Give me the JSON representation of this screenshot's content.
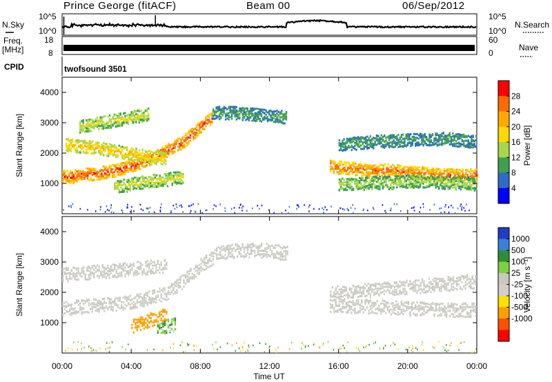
{
  "header": {
    "station": "Prince George (fitACF)",
    "beam": "Beam 00",
    "date": "06/Sep/2012"
  },
  "panels": {
    "nsky": {
      "left_label": "N.Sky",
      "left_ticks": [
        "10^5",
        "10^0"
      ],
      "right_ticks": [
        "10^5",
        "10^0"
      ],
      "right_label": "N.Search"
    },
    "freq": {
      "left_label_1": "Freq.",
      "left_label_2": "[MHz]",
      "left_ticks": [
        "18",
        "8"
      ],
      "right_ticks": [
        "60",
        "0"
      ],
      "right_label": "Nave"
    },
    "cpid": {
      "left_label": "CPID",
      "program": "twofsound 3501"
    }
  },
  "axes": {
    "ylabel": "Slant Range [km]",
    "yticks": [
      "4000",
      "3000",
      "2000",
      "1000"
    ],
    "xticks": [
      "00:00",
      "04:00",
      "08:00",
      "12:00",
      "16:00",
      "20:00",
      "00:00"
    ],
    "xlabel": "Time UT"
  },
  "colorbars": {
    "power": {
      "label": "Power [dB]",
      "ticks": [
        "28",
        "24",
        "20",
        "16",
        "12",
        "8",
        "4"
      ],
      "colors": [
        "#ff0000",
        "#ff6a00",
        "#ffaa00",
        "#ffd800",
        "#a8d84a",
        "#3ea04e",
        "#2f6bc8",
        "#0000ff"
      ]
    },
    "velocity": {
      "label": "Velocity [m s⁻¹]",
      "ticks": [
        "1000",
        "500",
        "100",
        "25",
        "-25",
        "-100",
        "-500",
        "-1000"
      ],
      "colors": [
        "#1e3ec8",
        "#3a80d8",
        "#2e8f3a",
        "#7fd040",
        "#c8c8c0",
        "#d0d0c8",
        "#ffe000",
        "#ffa000",
        "#ff5000",
        "#ff0000"
      ]
    }
  },
  "chart_data": [
    {
      "type": "heatmap",
      "title": "Power [dB]",
      "xlabel": "Time UT",
      "ylabel": "Slant Range [km]",
      "xlim": [
        0,
        24
      ],
      "ylim": [
        0,
        4500
      ],
      "colorbar_ticks": [
        4,
        8,
        12,
        16,
        20,
        24,
        28
      ],
      "bands": [
        {
          "t": [
            0,
            0.5,
            1,
            2,
            3,
            4,
            5,
            6,
            7,
            8,
            8.7
          ],
          "r": [
            1250,
            1250,
            1300,
            1350,
            1450,
            1600,
            1800,
            2100,
            2400,
            2900,
            3200
          ],
          "db": 26
        },
        {
          "t": [
            0.2,
            1,
            2,
            3,
            4,
            5,
            6
          ],
          "r": [
            2300,
            2250,
            2200,
            2100,
            2000,
            1900,
            1850
          ],
          "db": 18
        },
        {
          "t": [
            1,
            2,
            3,
            4,
            5
          ],
          "r": [
            2900,
            3000,
            3100,
            3200,
            3300
          ],
          "db": 14
        },
        {
          "t": [
            3,
            4,
            5,
            6,
            7
          ],
          "r": [
            900,
            1000,
            1100,
            1150,
            1250
          ],
          "db": 14
        },
        {
          "t": [
            8.7,
            10,
            11,
            12,
            13
          ],
          "r": [
            3350,
            3350,
            3300,
            3250,
            3200
          ],
          "db": 8
        },
        {
          "t": [
            15.5,
            16,
            17,
            18,
            19,
            20,
            21,
            22,
            23,
            24
          ],
          "r": [
            1600,
            1550,
            1500,
            1450,
            1450,
            1400,
            1350,
            1300,
            1300,
            1300
          ],
          "db": 24
        },
        {
          "t": [
            16,
            17,
            18,
            19,
            20,
            21,
            22,
            23,
            24
          ],
          "r": [
            1000,
            1000,
            1050,
            1050,
            1100,
            1100,
            1050,
            1050,
            1000
          ],
          "db": 12
        },
        {
          "t": [
            16,
            18,
            20,
            22,
            24
          ],
          "r": [
            2300,
            2400,
            2450,
            2500,
            2400
          ],
          "db": 8
        }
      ]
    },
    {
      "type": "heatmap",
      "title": "Velocity [m s⁻¹]",
      "xlabel": "Time UT",
      "ylabel": "Slant Range [km]",
      "xlim": [
        0,
        24
      ],
      "ylim": [
        0,
        4500
      ],
      "colorbar_ticks": [
        -1000,
        -500,
        -100,
        -25,
        25,
        100,
        500,
        1000
      ],
      "bands": [
        {
          "t": [
            0,
            2,
            4,
            6,
            7,
            8,
            9,
            10,
            12,
            13
          ],
          "r": [
            1500,
            1600,
            1700,
            2000,
            2400,
            2900,
            3300,
            3400,
            3400,
            3300
          ],
          "v": 0
        },
        {
          "t": [
            0,
            2,
            4,
            6
          ],
          "r": [
            2600,
            2700,
            2800,
            2900
          ],
          "v": 0
        },
        {
          "t": [
            15.5,
            18,
            20,
            22,
            24
          ],
          "r": [
            1600,
            1550,
            1500,
            1450,
            1450
          ],
          "v": 0
        },
        {
          "t": [
            15.5,
            18,
            20,
            22,
            24
          ],
          "r": [
            2000,
            2100,
            2200,
            2300,
            2400
          ],
          "v": 0
        },
        {
          "t": [
            4,
            5,
            6
          ],
          "r": [
            900,
            1100,
            1300
          ],
          "v": -300
        },
        {
          "t": [
            5.5,
            6,
            6.5
          ],
          "r": [
            800,
            900,
            1000
          ],
          "v": 80
        }
      ]
    }
  ]
}
